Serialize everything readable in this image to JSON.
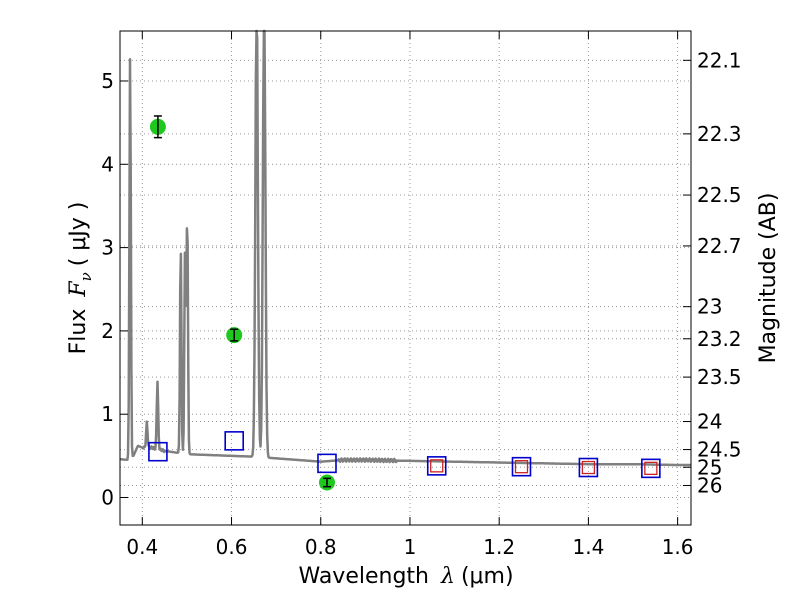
{
  "chart_data": {
    "type": "line",
    "xlabel": "Wavelength",
    "xlabel_symbol": "λ",
    "xlabel_unit": "(μm)",
    "ylabel": "Flux",
    "ylabel_symbol": "F",
    "ylabel_subscript": "ν",
    "ylabel_unit": "( μJy )",
    "y2label": "Magnitude (AB)",
    "xlim": [
      0.35,
      1.63
    ],
    "ylim": [
      -0.33,
      5.6
    ],
    "grid": true,
    "x_ticks": [
      0.4,
      0.6,
      0.8,
      1.0,
      1.2,
      1.4,
      1.6
    ],
    "x_tick_labels": [
      "0.4",
      "0.6",
      "0.8",
      "1",
      "1.2",
      "1.4",
      "1.6"
    ],
    "y_ticks": [
      0,
      1,
      2,
      3,
      4,
      5
    ],
    "y_tick_labels": [
      "0",
      "1",
      "2",
      "3",
      "4",
      "5"
    ],
    "y2_ticks": [
      22.1,
      22.3,
      22.5,
      22.7,
      23,
      23.2,
      23.5,
      24,
      24.5,
      25,
      26
    ],
    "y2_tick_labels": [
      "22.1",
      "22.3",
      "22.5",
      "22.7",
      "23",
      "23.2",
      "23.5",
      "24",
      "24.5",
      "25",
      "26"
    ],
    "colors": {
      "spectrum": "#808080",
      "observed": "#1ec81e",
      "model_blue": "#0000cc",
      "model_red": "#cc2222",
      "grid": "#999999"
    },
    "spectrum": {
      "continuum": [
        [
          0.35,
          0.46
        ],
        [
          0.37,
          0.45
        ],
        [
          0.38,
          0.5
        ],
        [
          0.39,
          0.62
        ],
        [
          0.4,
          0.6
        ],
        [
          0.42,
          0.6
        ],
        [
          0.45,
          0.56
        ],
        [
          0.5,
          0.52
        ],
        [
          0.55,
          0.51
        ],
        [
          0.6,
          0.5
        ],
        [
          0.65,
          0.49
        ],
        [
          0.7,
          0.47
        ],
        [
          0.75,
          0.45
        ],
        [
          0.8,
          0.43
        ],
        [
          0.85,
          0.45
        ],
        [
          0.9,
          0.45
        ],
        [
          1.0,
          0.44
        ],
        [
          1.1,
          0.43
        ],
        [
          1.2,
          0.42
        ],
        [
          1.3,
          0.41
        ],
        [
          1.4,
          0.4
        ],
        [
          1.5,
          0.4
        ],
        [
          1.6,
          0.39
        ],
        [
          1.63,
          0.39
        ]
      ],
      "emission_lines": [
        {
          "x": 0.3727,
          "peak": 5.3
        },
        {
          "x": 0.4102,
          "peak": 0.9
        },
        {
          "x": 0.434,
          "peak": 1.4
        },
        {
          "x": 0.4861,
          "peak": 3.0
        },
        {
          "x": 0.4959,
          "peak": 3.0
        },
        {
          "x": 0.5007,
          "peak": 3.4
        },
        {
          "x": 0.6563,
          "peak": 6.0
        },
        {
          "x": 0.6731,
          "peak": 6.0
        }
      ]
    },
    "observed": [
      {
        "x": 0.435,
        "y": 4.45,
        "err": 0.13
      },
      {
        "x": 0.606,
        "y": 1.95,
        "err": 0.07
      },
      {
        "x": 0.814,
        "y": 0.18,
        "err": 0.05
      }
    ],
    "model_blue": [
      {
        "x": 0.435,
        "y": 0.55
      },
      {
        "x": 0.606,
        "y": 0.68
      },
      {
        "x": 0.814,
        "y": 0.41
      },
      {
        "x": 1.06,
        "y": 0.38
      },
      {
        "x": 1.25,
        "y": 0.37
      },
      {
        "x": 1.4,
        "y": 0.36
      },
      {
        "x": 1.54,
        "y": 0.35
      }
    ],
    "model_red": [
      {
        "x": 1.06,
        "y": 0.38
      },
      {
        "x": 1.25,
        "y": 0.37
      },
      {
        "x": 1.4,
        "y": 0.36
      },
      {
        "x": 1.54,
        "y": 0.35
      }
    ]
  }
}
